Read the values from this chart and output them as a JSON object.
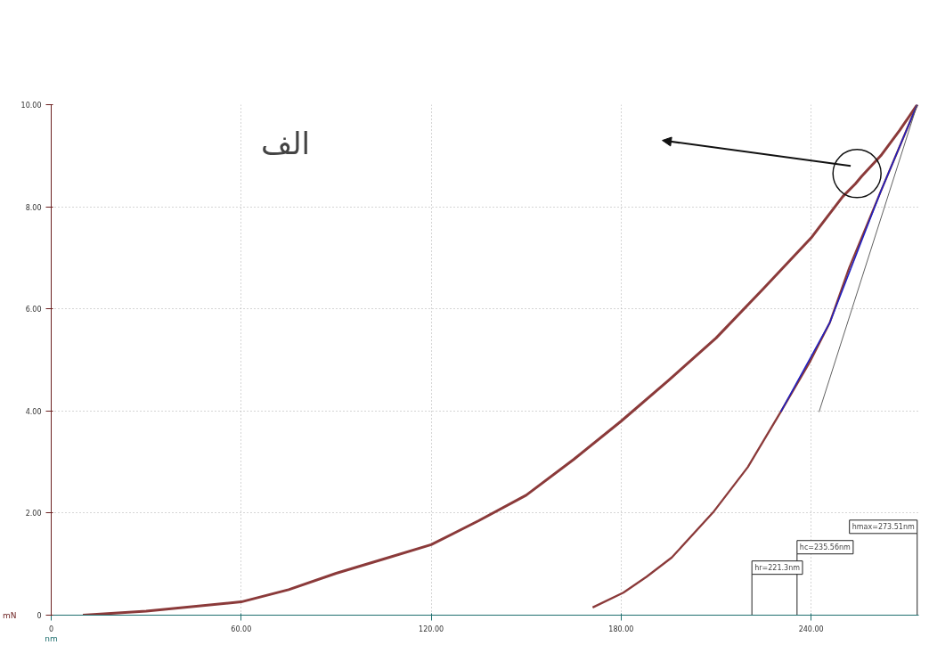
{
  "chart_data": {
    "type": "line",
    "annotations": [
      "الف"
    ],
    "ref_lines": [
      {
        "axis": "x",
        "value": 221.3,
        "label": "hr=221.3nm",
        "color": "#222222"
      },
      {
        "axis": "x",
        "value": 235.56,
        "label": "hc=235.56nm",
        "color": "#222222"
      },
      {
        "axis": "x",
        "value": 273.51,
        "label": "hmax=273.51nm",
        "color": "#222222"
      }
    ],
    "xlabel": "nm",
    "ylabel": "mN",
    "series": [
      {
        "color": "#8b3a3a",
        "x": [
          10,
          30,
          60,
          75,
          90,
          105,
          120,
          135,
          150,
          165,
          180,
          195,
          210,
          225,
          240,
          250,
          254,
          256,
          262,
          268,
          273.51
        ],
        "values": [
          0,
          0.08,
          0.26,
          0.5,
          0.82,
          1.1,
          1.38,
          1.85,
          2.35,
          3.05,
          3.8,
          4.6,
          5.43,
          6.4,
          7.39,
          8.2,
          8.45,
          8.6,
          9.0,
          9.5,
          10
        ]
      },
      {
        "color": "#8b3a3a",
        "x": [
          273.51,
          262,
          252,
          245.9,
          239.5,
          230.4,
          220,
          209,
          196,
          188,
          180.7,
          171
        ],
        "values": [
          10,
          8.3,
          6.8,
          5.73,
          4.95,
          3.98,
          2.9,
          2.01,
          1.13,
          0.75,
          0.44,
          0.15
        ]
      },
      {
        "color": "#2020c0",
        "x": [
          230.4,
          245.9,
          262,
          273.51
        ],
        "values": [
          3.98,
          5.73,
          8.3,
          10
        ]
      },
      {
        "color": "#606060",
        "x": [
          242.5,
          273.51
        ],
        "values": [
          3.98,
          10
        ]
      }
    ],
    "xlim": [
      0,
      274
    ],
    "ylim": [
      0,
      10
    ],
    "xticks": [
      0,
      {
        "value": 60,
        "label": "60.00"
      },
      {
        "value": 120,
        "label": "120.00"
      },
      {
        "value": 180,
        "label": "180.00"
      },
      {
        "value": 240,
        "label": "240.00"
      }
    ],
    "yticks": [
      0,
      {
        "value": 2,
        "label": "2.00"
      },
      {
        "value": 4,
        "label": "4.00"
      },
      {
        "value": 6,
        "label": "6.00"
      },
      {
        "value": 8,
        "label": "8.00"
      },
      {
        "value": 10,
        "label": "10.00"
      }
    ],
    "grid": true,
    "line_style": "solid"
  }
}
